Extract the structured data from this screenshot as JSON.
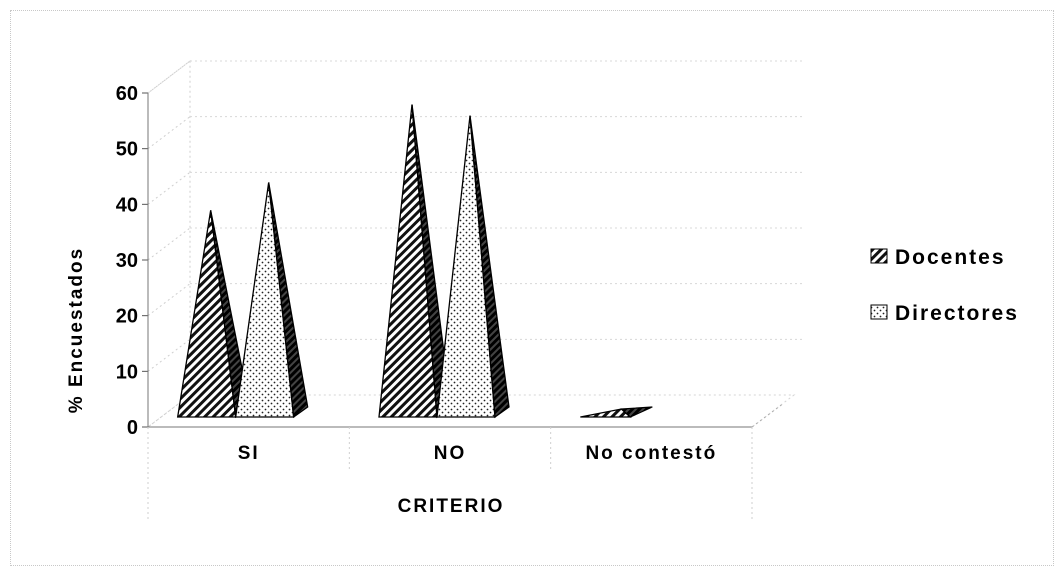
{
  "chart_data": {
    "type": "bar",
    "style": "3d-pyramid",
    "title": "",
    "xlabel": "CRITERIO",
    "ylabel": "% Encuestados",
    "ylim": [
      0,
      60
    ],
    "yticks": [
      "0",
      "10",
      "20",
      "30",
      "40",
      "50",
      "60"
    ],
    "categories": [
      "SI",
      "NO",
      "No contestó"
    ],
    "series": [
      {
        "name": "Docentes",
        "values": [
          40,
          59,
          2
        ],
        "pattern": "diagonal-hatch"
      },
      {
        "name": "Directores",
        "values": [
          45,
          57,
          0
        ],
        "pattern": "dots"
      }
    ],
    "grid": true,
    "legend": "right"
  }
}
